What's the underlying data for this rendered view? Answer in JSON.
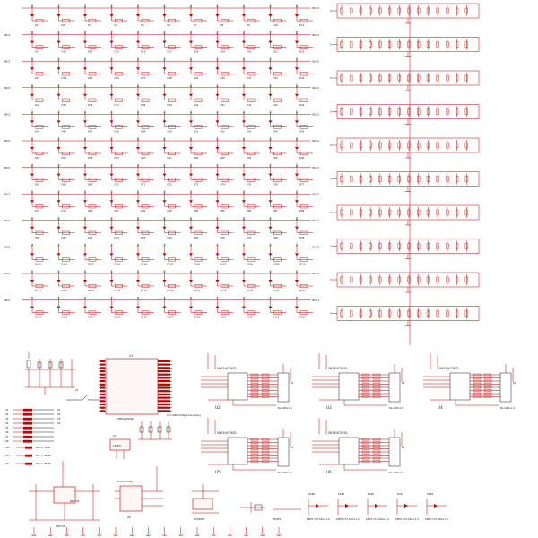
{
  "colors": {
    "wire": "#c00000",
    "text": "#1a1a1a",
    "background": "#ffffff"
  },
  "matrix": {
    "net_label": "BKIC1",
    "vcc_label": "5V",
    "rows": 12,
    "cols": 11,
    "first_index": 1
  },
  "resistor_bank": {
    "rows": 10,
    "cols": 14,
    "vcc_label": "5V"
  },
  "controller": {
    "ref": "U1",
    "part": "ATMEGA644PA",
    "note": "VCC GND Voltage decoupling"
  },
  "crystal": {
    "ref": "U7",
    "value": "16MHz"
  },
  "usb": {
    "ref": "U8",
    "part": "MAX232ACSE"
  },
  "switch": {
    "ref": "K1"
  },
  "shift_registers": [
    {
      "ref": "U2",
      "part": "SN74HC595D",
      "cap": "BL-1066-1.0"
    },
    {
      "ref": "U3",
      "part": "SN74HC595D",
      "cap": "BL-1066-1.0"
    },
    {
      "ref": "U4",
      "part": "SN74HC595D",
      "cap": "BL-1066-1.0"
    },
    {
      "ref": "U5",
      "part": "SN74HC595D",
      "cap": "BL-1066-1.0"
    },
    {
      "ref": "U6",
      "part": "SN74HC595D",
      "cap": "BL-1066-1.0"
    }
  ],
  "left_nets": {
    "k_labels": [
      "X1",
      "X2",
      "X3",
      "X4",
      "X5",
      "X6",
      "X7",
      "X8"
    ],
    "pwr_labels": [
      "PA0 or 3B-4F",
      "PA1 or 3B-4F",
      "PA2 or 3B-4F"
    ],
    "pwr_prefix": [
      "X10",
      "X11",
      "X9"
    ]
  },
  "regulator": {
    "ref": "BD3139",
    "sub": "BD3139"
  },
  "bottom": {
    "mcp_ref": "MCP9000",
    "fuse_ref": "NTMD1",
    "led_refs": [
      "D1B0",
      "D1B1",
      "D1B2",
      "D1B3",
      "D1B4"
    ],
    "led_part": "KPHD-1T2-50A4-1.0"
  },
  "ground_count": 16
}
